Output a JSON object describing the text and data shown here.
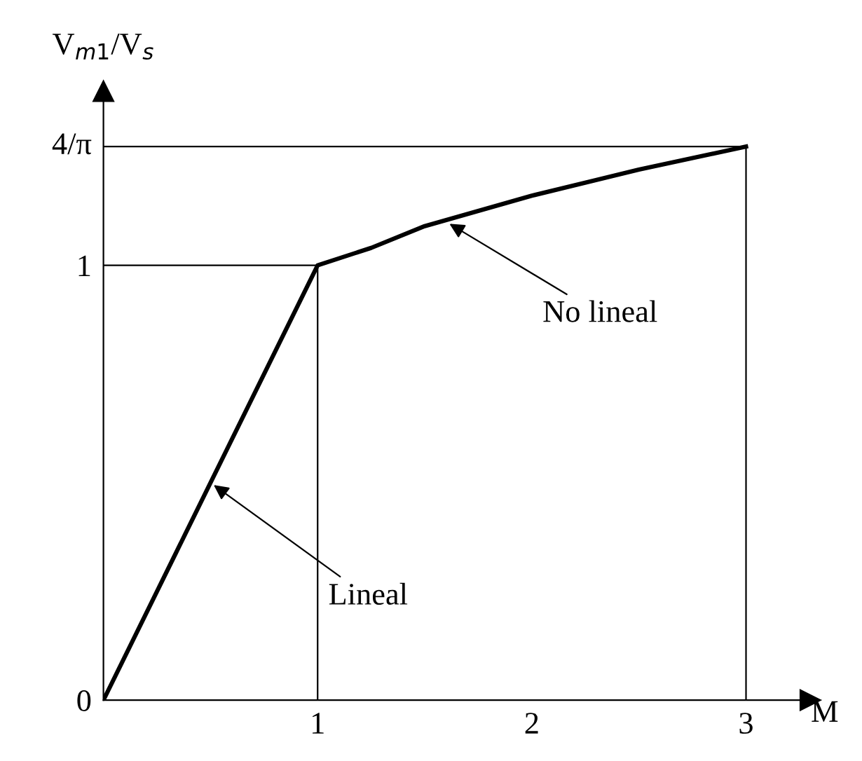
{
  "chart_data": {
    "type": "line",
    "xlabel": "M",
    "ylabel": "V$_{m1}$/V$_{s}$",
    "series": [
      {
        "color": "#000000",
        "x": [
          0,
          1,
          1.25,
          1.5,
          2,
          2.5,
          3
        ],
        "values": [
          0,
          1,
          1.04,
          1.09,
          1.16,
          1.22,
          1.273
        ]
      }
    ],
    "xlim": [
      0,
      3.3
    ],
    "ylim": [
      0,
      1.4
    ],
    "xticks": [
      1,
      2,
      3
    ],
    "yticks": [
      0,
      1
    ],
    "ref_lines": [
      {
        "axis": "x",
        "value": 1,
        "color": "#000000"
      },
      {
        "axis": "y",
        "value": 1,
        "color": "#000000"
      },
      {
        "axis": "x",
        "value": 3,
        "color": "#000000"
      },
      {
        "axis": "y",
        "value": 1.273,
        "label": "4/π",
        "color": "#000000"
      }
    ],
    "annotations": [
      {
        "text": "Lineal",
        "x": 0.5,
        "y": 0.5
      },
      {
        "text": "No lineal",
        "x": 1.6,
        "y": 1.1
      }
    ],
    "grid": false,
    "marker": "none",
    "line_style": "solid"
  }
}
